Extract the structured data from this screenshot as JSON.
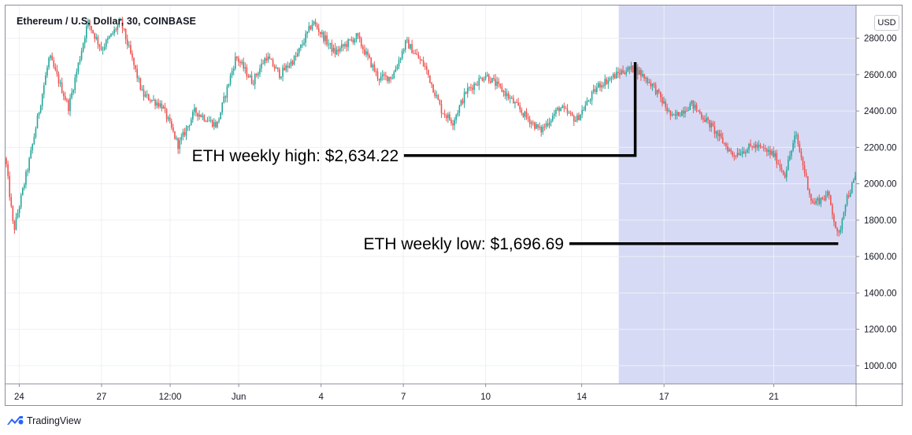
{
  "header": {
    "title": "Ethereum / U.S. Dollar, 30, COINBASE",
    "currency": "USD"
  },
  "brand": {
    "name": "TradingView",
    "icon": "tradingview-logo-icon"
  },
  "colors": {
    "up": "#26a69a",
    "down": "#ef5350",
    "highlight": "#d6daf5",
    "grid": "#eef0f3",
    "line": "#000000"
  },
  "chart_data": {
    "type": "candlestick",
    "title": "Ethereum / U.S. Dollar, 30, COINBASE",
    "ylim": [
      900,
      2980
    ],
    "yticks": [
      1000,
      1200,
      1400,
      1600,
      1800,
      2000,
      2200,
      2400,
      2600,
      2800
    ],
    "ytick_labels": [
      "1000.00",
      "1200.00",
      "1400.00",
      "1600.00",
      "1800.00",
      "2000.00",
      "2200.00",
      "2400.00",
      "2600.00",
      "2800.00"
    ],
    "xlim": [
      0,
      31
    ],
    "xticks": [
      0.5,
      3.5,
      6,
      8.5,
      11.5,
      14.5,
      17.5,
      21,
      24,
      28
    ],
    "xtick_labels": [
      "24",
      "27",
      "12:00",
      "Jun",
      "4",
      "7",
      "10",
      "14",
      "17",
      "21"
    ],
    "highlight_range": [
      22.35,
      31
    ],
    "price_path": [
      [
        0,
        2140
      ],
      [
        0.3,
        1740
      ],
      [
        0.9,
        2150
      ],
      [
        1.6,
        2700
      ],
      [
        2.3,
        2420
      ],
      [
        3.0,
        2890
      ],
      [
        3.5,
        2740
      ],
      [
        4.2,
        2890
      ],
      [
        5.0,
        2490
      ],
      [
        5.7,
        2430
      ],
      [
        6.3,
        2210
      ],
      [
        6.9,
        2400
      ],
      [
        7.7,
        2320
      ],
      [
        8.4,
        2700
      ],
      [
        9.0,
        2560
      ],
      [
        9.5,
        2700
      ],
      [
        10.0,
        2600
      ],
      [
        10.6,
        2700
      ],
      [
        11.2,
        2890
      ],
      [
        12.0,
        2720
      ],
      [
        12.8,
        2810
      ],
      [
        13.6,
        2580
      ],
      [
        14.1,
        2590
      ],
      [
        14.6,
        2780
      ],
      [
        15.3,
        2640
      ],
      [
        15.9,
        2400
      ],
      [
        16.3,
        2340
      ],
      [
        16.8,
        2510
      ],
      [
        17.5,
        2600
      ],
      [
        18.2,
        2500
      ],
      [
        18.9,
        2380
      ],
      [
        19.5,
        2290
      ],
      [
        20.2,
        2420
      ],
      [
        20.8,
        2350
      ],
      [
        21.6,
        2540
      ],
      [
        22.5,
        2620
      ],
      [
        22.95,
        2634
      ],
      [
        23.6,
        2540
      ],
      [
        24.3,
        2360
      ],
      [
        25.0,
        2440
      ],
      [
        25.7,
        2320
      ],
      [
        26.5,
        2160
      ],
      [
        27.3,
        2210
      ],
      [
        28.0,
        2160
      ],
      [
        28.4,
        2050
      ],
      [
        28.8,
        2270
      ],
      [
        29.4,
        1890
      ],
      [
        30.0,
        1940
      ],
      [
        30.35,
        1696
      ],
      [
        30.6,
        1900
      ],
      [
        31.0,
        2040
      ]
    ],
    "annotations": [
      {
        "text": "ETH weekly high: $2,634.22",
        "value": 2634.22
      },
      {
        "text": "ETH weekly low: $1,696.69",
        "value": 1696.69
      }
    ]
  }
}
